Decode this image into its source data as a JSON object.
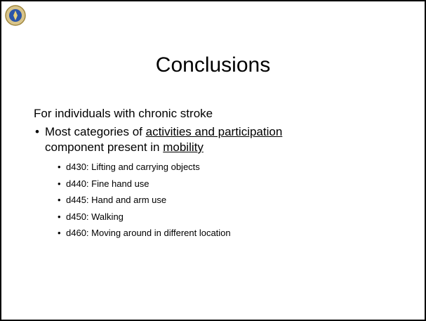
{
  "slide": {
    "title": "Conclusions",
    "intro": "For individuals with chronic stroke",
    "bullet": {
      "lines": [
        [
          {
            "text": "Most categories of ",
            "underline": false
          },
          {
            "text": "activities and participation",
            "underline": true
          }
        ],
        [
          {
            "text": "component present in ",
            "underline": false
          },
          {
            "text": "mobility",
            "underline": true
          }
        ]
      ]
    },
    "sub_bullets": [
      "d430: Lifting and carrying objects",
      "d440: Fine hand use",
      "d445: Hand and arm use",
      "d450: Walking",
      "d460: Moving around in different location"
    ]
  }
}
